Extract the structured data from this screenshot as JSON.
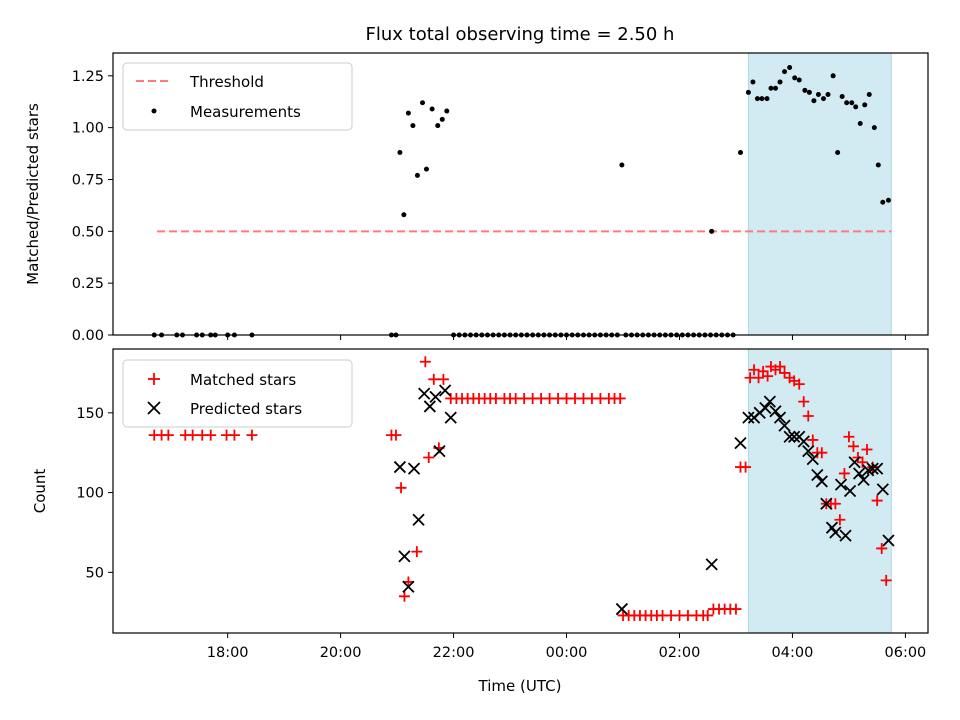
{
  "title": "Flux total observing time = 2.50 h",
  "colors": {
    "threshold": "#ff7b7b",
    "measurement": "#000000",
    "matched": "#ff0000",
    "predicted": "#000000",
    "highlight": "#add8e6"
  },
  "chart_data": [
    {
      "type": "scatter",
      "panel": "top",
      "ylabel": "Matched/Predicted stars",
      "xlabel": "",
      "ylim": [
        0.0,
        1.36
      ],
      "yticks": [
        0.0,
        0.25,
        0.5,
        0.75,
        1.0,
        1.25
      ],
      "ytick_labels": [
        "0.00",
        "0.25",
        "0.50",
        "0.75",
        "1.00",
        "1.25"
      ],
      "legend_position": "upper-left",
      "legend": [
        "Threshold",
        "Measurements"
      ],
      "highlight_span_hours": [
        27.22,
        29.75
      ],
      "threshold": {
        "name": "Threshold",
        "y": 0.5,
        "x_range_hours": [
          16.75,
          29.75
        ]
      },
      "series": [
        {
          "name": "Measurements",
          "points": [
            [
              16.7,
              0
            ],
            [
              16.83,
              0
            ],
            [
              17.1,
              0
            ],
            [
              17.2,
              0
            ],
            [
              17.45,
              0
            ],
            [
              17.55,
              0
            ],
            [
              17.7,
              0
            ],
            [
              17.78,
              0
            ],
            [
              18.0,
              0
            ],
            [
              18.12,
              0
            ],
            [
              18.43,
              0
            ],
            [
              20.9,
              0
            ],
            [
              20.98,
              0
            ],
            [
              21.05,
              0.88
            ],
            [
              21.12,
              0.58
            ],
            [
              21.2,
              1.07
            ],
            [
              21.28,
              1.01
            ],
            [
              21.36,
              0.77
            ],
            [
              21.45,
              1.12
            ],
            [
              21.52,
              0.8
            ],
            [
              21.62,
              1.09
            ],
            [
              21.72,
              1.01
            ],
            [
              21.8,
              1.04
            ],
            [
              21.88,
              1.08
            ],
            [
              22.0,
              0
            ],
            [
              22.1,
              0
            ],
            [
              22.2,
              0
            ],
            [
              22.3,
              0
            ],
            [
              22.4,
              0
            ],
            [
              22.5,
              0
            ],
            [
              22.6,
              0
            ],
            [
              22.7,
              0
            ],
            [
              22.8,
              0
            ],
            [
              22.9,
              0
            ],
            [
              23.0,
              0
            ],
            [
              23.1,
              0
            ],
            [
              23.2,
              0
            ],
            [
              23.3,
              0
            ],
            [
              23.4,
              0
            ],
            [
              23.5,
              0
            ],
            [
              23.6,
              0
            ],
            [
              23.7,
              0
            ],
            [
              23.8,
              0
            ],
            [
              23.9,
              0
            ],
            [
              24.0,
              0
            ],
            [
              24.1,
              0
            ],
            [
              24.2,
              0
            ],
            [
              24.3,
              0
            ],
            [
              24.4,
              0
            ],
            [
              24.5,
              0
            ],
            [
              24.6,
              0
            ],
            [
              24.7,
              0
            ],
            [
              24.8,
              0
            ],
            [
              24.9,
              0
            ],
            [
              24.98,
              0.82
            ],
            [
              25.05,
              0
            ],
            [
              25.15,
              0
            ],
            [
              25.25,
              0
            ],
            [
              25.35,
              0
            ],
            [
              25.45,
              0
            ],
            [
              25.55,
              0
            ],
            [
              25.65,
              0
            ],
            [
              25.75,
              0
            ],
            [
              25.85,
              0
            ],
            [
              25.95,
              0
            ],
            [
              26.05,
              0
            ],
            [
              26.15,
              0
            ],
            [
              26.25,
              0
            ],
            [
              26.35,
              0
            ],
            [
              26.45,
              0
            ],
            [
              26.55,
              0
            ],
            [
              26.65,
              0
            ],
            [
              26.75,
              0
            ],
            [
              26.85,
              0
            ],
            [
              26.95,
              0
            ],
            [
              26.57,
              0.5
            ],
            [
              27.08,
              0.88
            ],
            [
              27.22,
              1.17
            ],
            [
              27.3,
              1.22
            ],
            [
              27.38,
              1.14
            ],
            [
              27.46,
              1.14
            ],
            [
              27.55,
              1.14
            ],
            [
              27.62,
              1.19
            ],
            [
              27.7,
              1.19
            ],
            [
              27.78,
              1.22
            ],
            [
              27.86,
              1.27
            ],
            [
              27.95,
              1.29
            ],
            [
              28.04,
              1.24
            ],
            [
              28.12,
              1.23
            ],
            [
              28.22,
              1.18
            ],
            [
              28.3,
              1.17
            ],
            [
              28.38,
              1.13
            ],
            [
              28.46,
              1.16
            ],
            [
              28.55,
              1.14
            ],
            [
              28.63,
              1.16
            ],
            [
              28.72,
              1.25
            ],
            [
              28.8,
              0.88
            ],
            [
              28.88,
              1.15
            ],
            [
              28.96,
              1.12
            ],
            [
              29.05,
              1.12
            ],
            [
              29.12,
              1.1
            ],
            [
              29.2,
              1.02
            ],
            [
              29.28,
              1.11
            ],
            [
              29.36,
              1.16
            ],
            [
              29.45,
              1.0
            ],
            [
              29.52,
              0.82
            ],
            [
              29.6,
              0.64
            ],
            [
              29.7,
              0.65
            ]
          ]
        }
      ]
    },
    {
      "type": "scatter",
      "panel": "bottom",
      "ylabel": "Count",
      "xlabel": "Time (UTC)",
      "x_unit": "hours since 00:00 of first day",
      "xlim_hours": [
        15.97,
        30.4
      ],
      "xticks_hours": [
        18,
        20,
        22,
        24,
        26,
        28,
        30
      ],
      "xtick_labels": [
        "18:00",
        "20:00",
        "22:00",
        "00:00",
        "02:00",
        "04:00",
        "06:00"
      ],
      "ylim": [
        12,
        190
      ],
      "yticks": [
        50,
        100,
        150
      ],
      "ytick_labels": [
        "50",
        "100",
        "150"
      ],
      "legend_position": "upper-left",
      "legend": [
        "Matched stars",
        "Predicted stars"
      ],
      "highlight_span_hours": [
        27.22,
        29.75
      ],
      "series": [
        {
          "name": "Matched stars",
          "points": [
            [
              16.7,
              136
            ],
            [
              16.83,
              136
            ],
            [
              16.95,
              136
            ],
            [
              17.25,
              136
            ],
            [
              17.38,
              136
            ],
            [
              17.55,
              136
            ],
            [
              17.7,
              136
            ],
            [
              17.98,
              136
            ],
            [
              18.12,
              136
            ],
            [
              18.43,
              136
            ],
            [
              20.9,
              136
            ],
            [
              20.98,
              136
            ],
            [
              21.07,
              103
            ],
            [
              21.13,
              35
            ],
            [
              21.2,
              44
            ],
            [
              21.35,
              63
            ],
            [
              21.5,
              182
            ],
            [
              21.56,
              122
            ],
            [
              21.65,
              171
            ],
            [
              21.74,
              128
            ],
            [
              21.82,
              171
            ],
            [
              21.95,
              159
            ],
            [
              22.05,
              159
            ],
            [
              22.15,
              159
            ],
            [
              22.25,
              159
            ],
            [
              22.35,
              159
            ],
            [
              22.45,
              159
            ],
            [
              22.55,
              159
            ],
            [
              22.65,
              159
            ],
            [
              22.75,
              159
            ],
            [
              22.9,
              159
            ],
            [
              23.0,
              159
            ],
            [
              23.1,
              159
            ],
            [
              23.25,
              159
            ],
            [
              23.4,
              159
            ],
            [
              23.55,
              159
            ],
            [
              23.7,
              159
            ],
            [
              23.85,
              159
            ],
            [
              24.0,
              159
            ],
            [
              24.15,
              159
            ],
            [
              24.3,
              159
            ],
            [
              24.45,
              159
            ],
            [
              24.6,
              159
            ],
            [
              24.75,
              159
            ],
            [
              24.85,
              159
            ],
            [
              24.95,
              159
            ],
            [
              25.0,
              23
            ],
            [
              25.1,
              23
            ],
            [
              25.2,
              23
            ],
            [
              25.3,
              23
            ],
            [
              25.4,
              23
            ],
            [
              25.5,
              23
            ],
            [
              25.6,
              23
            ],
            [
              25.7,
              23
            ],
            [
              25.85,
              23
            ],
            [
              26.0,
              23
            ],
            [
              26.15,
              23
            ],
            [
              26.3,
              23
            ],
            [
              26.42,
              23
            ],
            [
              26.5,
              23
            ],
            [
              26.6,
              27
            ],
            [
              26.7,
              27
            ],
            [
              26.8,
              27
            ],
            [
              26.9,
              27
            ],
            [
              27.0,
              27
            ],
            [
              27.08,
              116
            ],
            [
              27.17,
              116
            ],
            [
              27.25,
              172
            ],
            [
              27.32,
              177
            ],
            [
              27.4,
              172
            ],
            [
              27.48,
              176
            ],
            [
              27.56,
              173
            ],
            [
              27.62,
              179
            ],
            [
              27.7,
              177
            ],
            [
              27.78,
              179
            ],
            [
              27.86,
              175
            ],
            [
              27.95,
              172
            ],
            [
              28.03,
              170
            ],
            [
              28.12,
              168
            ],
            [
              28.2,
              157
            ],
            [
              28.28,
              148
            ],
            [
              28.36,
              133
            ],
            [
              28.44,
              125
            ],
            [
              28.52,
              125
            ],
            [
              28.6,
              93
            ],
            [
              28.68,
              93
            ],
            [
              28.76,
              93
            ],
            [
              28.84,
              83
            ],
            [
              28.92,
              112
            ],
            [
              29.0,
              135
            ],
            [
              29.08,
              129
            ],
            [
              29.16,
              122
            ],
            [
              29.24,
              119
            ],
            [
              29.32,
              127
            ],
            [
              29.42,
              116
            ],
            [
              29.5,
              95
            ],
            [
              29.58,
              65
            ],
            [
              29.66,
              45
            ]
          ]
        },
        {
          "name": "Predicted stars",
          "points": [
            [
              21.05,
              116
            ],
            [
              21.13,
              60
            ],
            [
              21.2,
              41
            ],
            [
              21.3,
              115
            ],
            [
              21.38,
              83
            ],
            [
              21.48,
              162
            ],
            [
              21.58,
              154
            ],
            [
              21.68,
              160
            ],
            [
              21.75,
              126
            ],
            [
              21.85,
              164
            ],
            [
              21.95,
              147
            ],
            [
              24.98,
              27
            ],
            [
              26.57,
              55
            ],
            [
              27.08,
              131
            ],
            [
              27.22,
              147
            ],
            [
              27.32,
              147
            ],
            [
              27.42,
              150
            ],
            [
              27.52,
              153
            ],
            [
              27.6,
              157
            ],
            [
              27.7,
              151
            ],
            [
              27.78,
              147
            ],
            [
              27.86,
              142
            ],
            [
              27.95,
              135
            ],
            [
              28.03,
              135
            ],
            [
              28.12,
              135
            ],
            [
              28.2,
              132
            ],
            [
              28.28,
              126
            ],
            [
              28.36,
              121
            ],
            [
              28.44,
              111
            ],
            [
              28.52,
              107
            ],
            [
              28.6,
              93
            ],
            [
              28.7,
              78
            ],
            [
              28.76,
              75
            ],
            [
              28.86,
              105
            ],
            [
              28.94,
              73
            ],
            [
              29.02,
              101
            ],
            [
              29.1,
              119
            ],
            [
              29.18,
              112
            ],
            [
              29.26,
              108
            ],
            [
              29.34,
              114
            ],
            [
              29.42,
              115
            ],
            [
              29.5,
              115
            ],
            [
              29.6,
              102
            ],
            [
              29.7,
              70
            ]
          ]
        }
      ]
    }
  ]
}
